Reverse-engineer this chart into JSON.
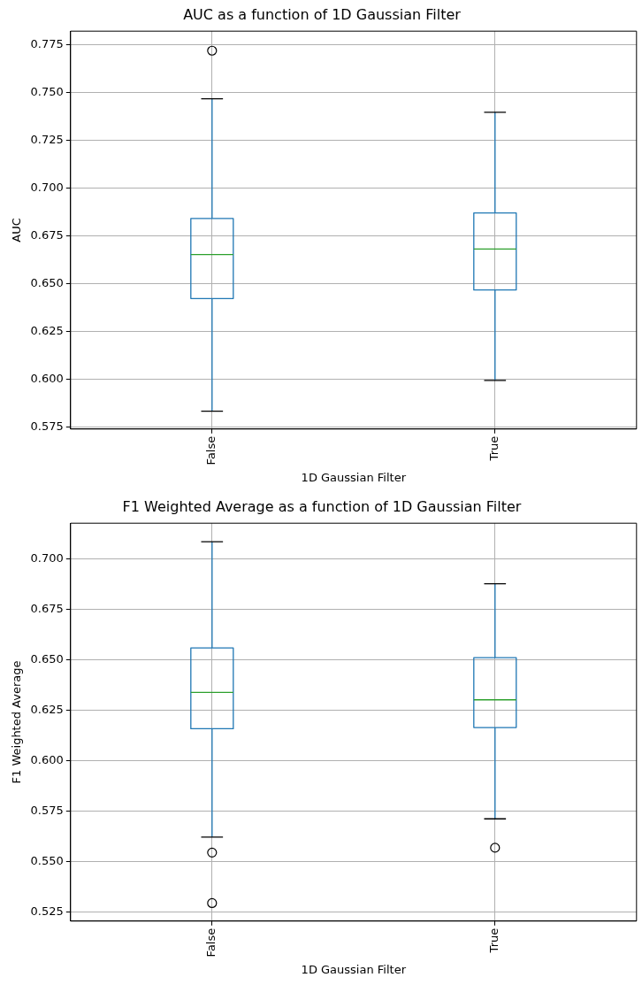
{
  "chart_data": [
    {
      "type": "box",
      "title": "AUC as a function of 1D Gaussian Filter",
      "xlabel": "1D Gaussian Filter",
      "ylabel": "AUC",
      "categories": [
        "False",
        "True"
      ],
      "series": [
        {
          "color": "#1f77b4",
          "boxes": [
            {
              "low": 0.5833,
              "q1": 0.6422,
              "median": 0.6652,
              "q3": 0.6841,
              "high": 0.7466,
              "outliers": [
                0.7718
              ]
            },
            {
              "low": 0.5994,
              "q1": 0.6467,
              "median": 0.6681,
              "q3": 0.687,
              "high": 0.7396
            }
          ]
        }
      ],
      "ylim": [
        0.574,
        0.782
      ],
      "yticks": [
        0.575,
        {
          "value": 0.6,
          "label": "0.600"
        },
        0.625,
        {
          "value": 0.65,
          "label": "0.650"
        },
        0.675,
        {
          "value": 0.7,
          "label": "0.700"
        },
        0.725,
        {
          "value": 0.75,
          "label": "0.750"
        },
        0.775
      ],
      "grid": true
    },
    {
      "type": "box",
      "title": "F1 Weighted Average as a function of 1D Gaussian Filter",
      "xlabel": "1D Gaussian Filter",
      "ylabel": "F1 Weighted Average",
      "categories": [
        "False",
        "True"
      ],
      "series": [
        {
          "color": "#1f77b4",
          "boxes": [
            {
              "low": 0.5623,
              "q1": 0.6159,
              "median": 0.6339,
              "q3": 0.6559,
              "high": 0.7084,
              "outliers": [
                0.5546,
                0.5296
              ]
            },
            {
              "low": 0.5713,
              "q1": 0.6165,
              "median": 0.6302,
              "q3": 0.6511,
              "high": 0.6876,
              "outliers": [
                0.557
              ]
            }
          ]
        }
      ],
      "ylim": [
        0.5207,
        0.7176
      ],
      "yticks": [
        0.525,
        {
          "value": 0.55,
          "label": "0.550"
        },
        0.575,
        {
          "value": 0.6,
          "label": "0.600"
        },
        0.625,
        {
          "value": 0.65,
          "label": "0.650"
        },
        0.675,
        {
          "value": 0.7,
          "label": "0.700"
        }
      ],
      "grid": true
    }
  ]
}
